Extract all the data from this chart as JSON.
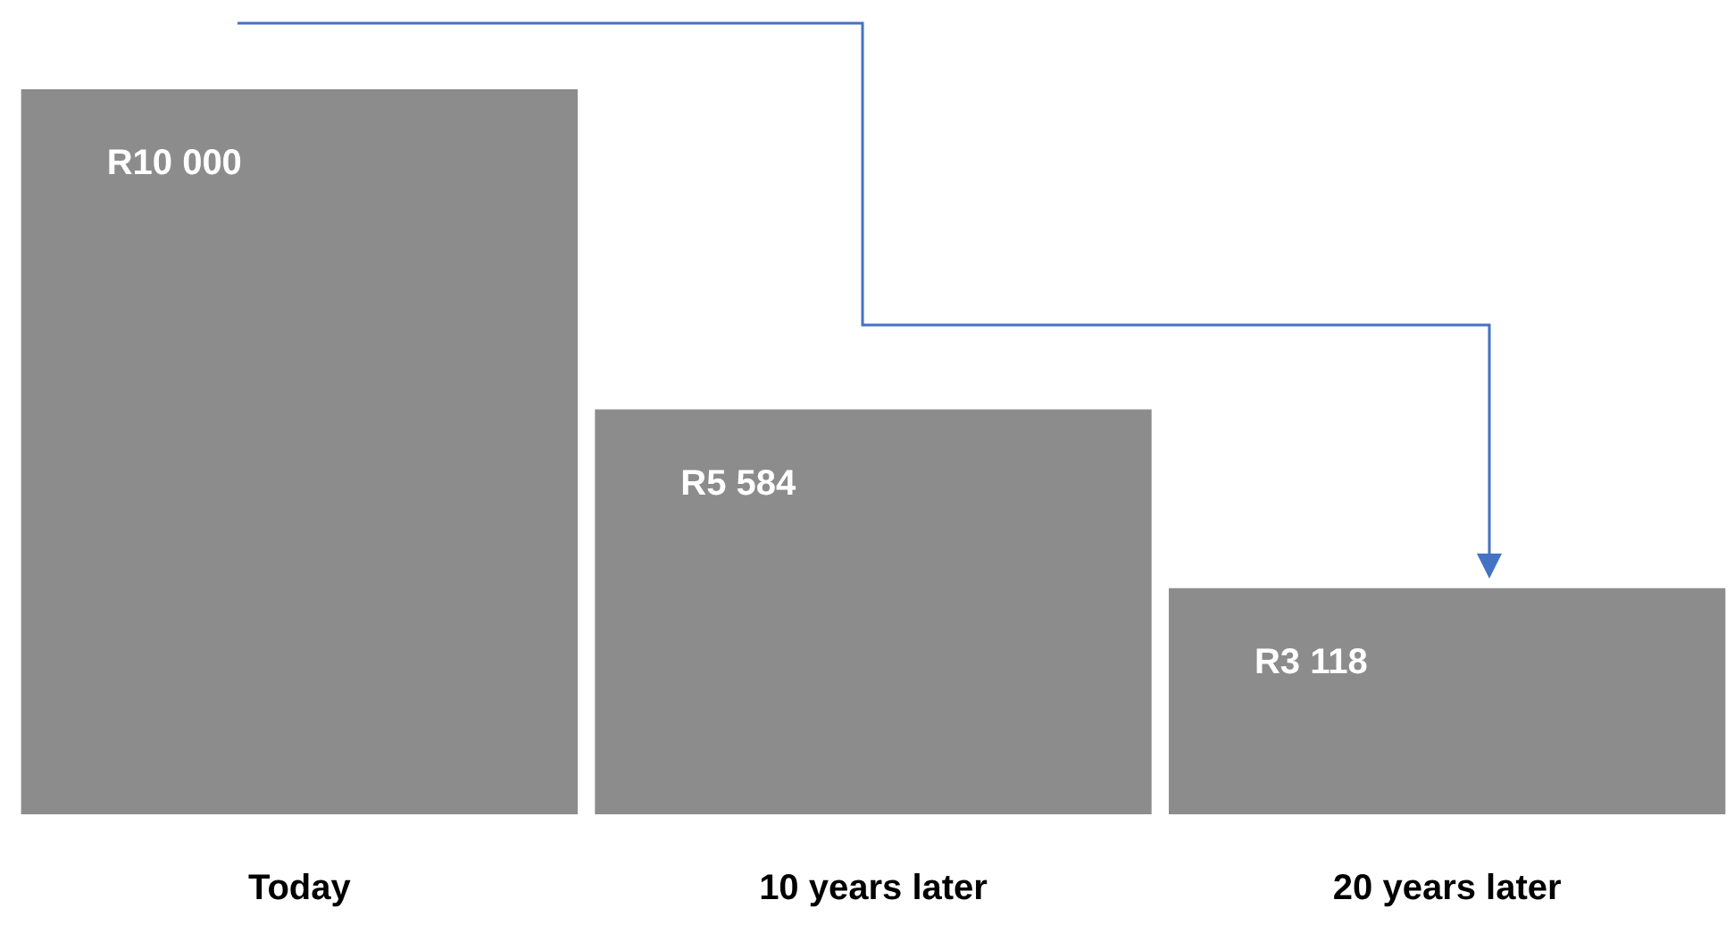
{
  "chart_data": {
    "type": "bar",
    "categories": [
      "Today",
      "10 years later",
      "20 years later"
    ],
    "values": [
      10000,
      5584,
      3118
    ],
    "color": "#8c8c8c",
    "value_labels": [
      "R10 000",
      "R5 584",
      "R3 118"
    ],
    "tick_labels": "x"
  }
}
